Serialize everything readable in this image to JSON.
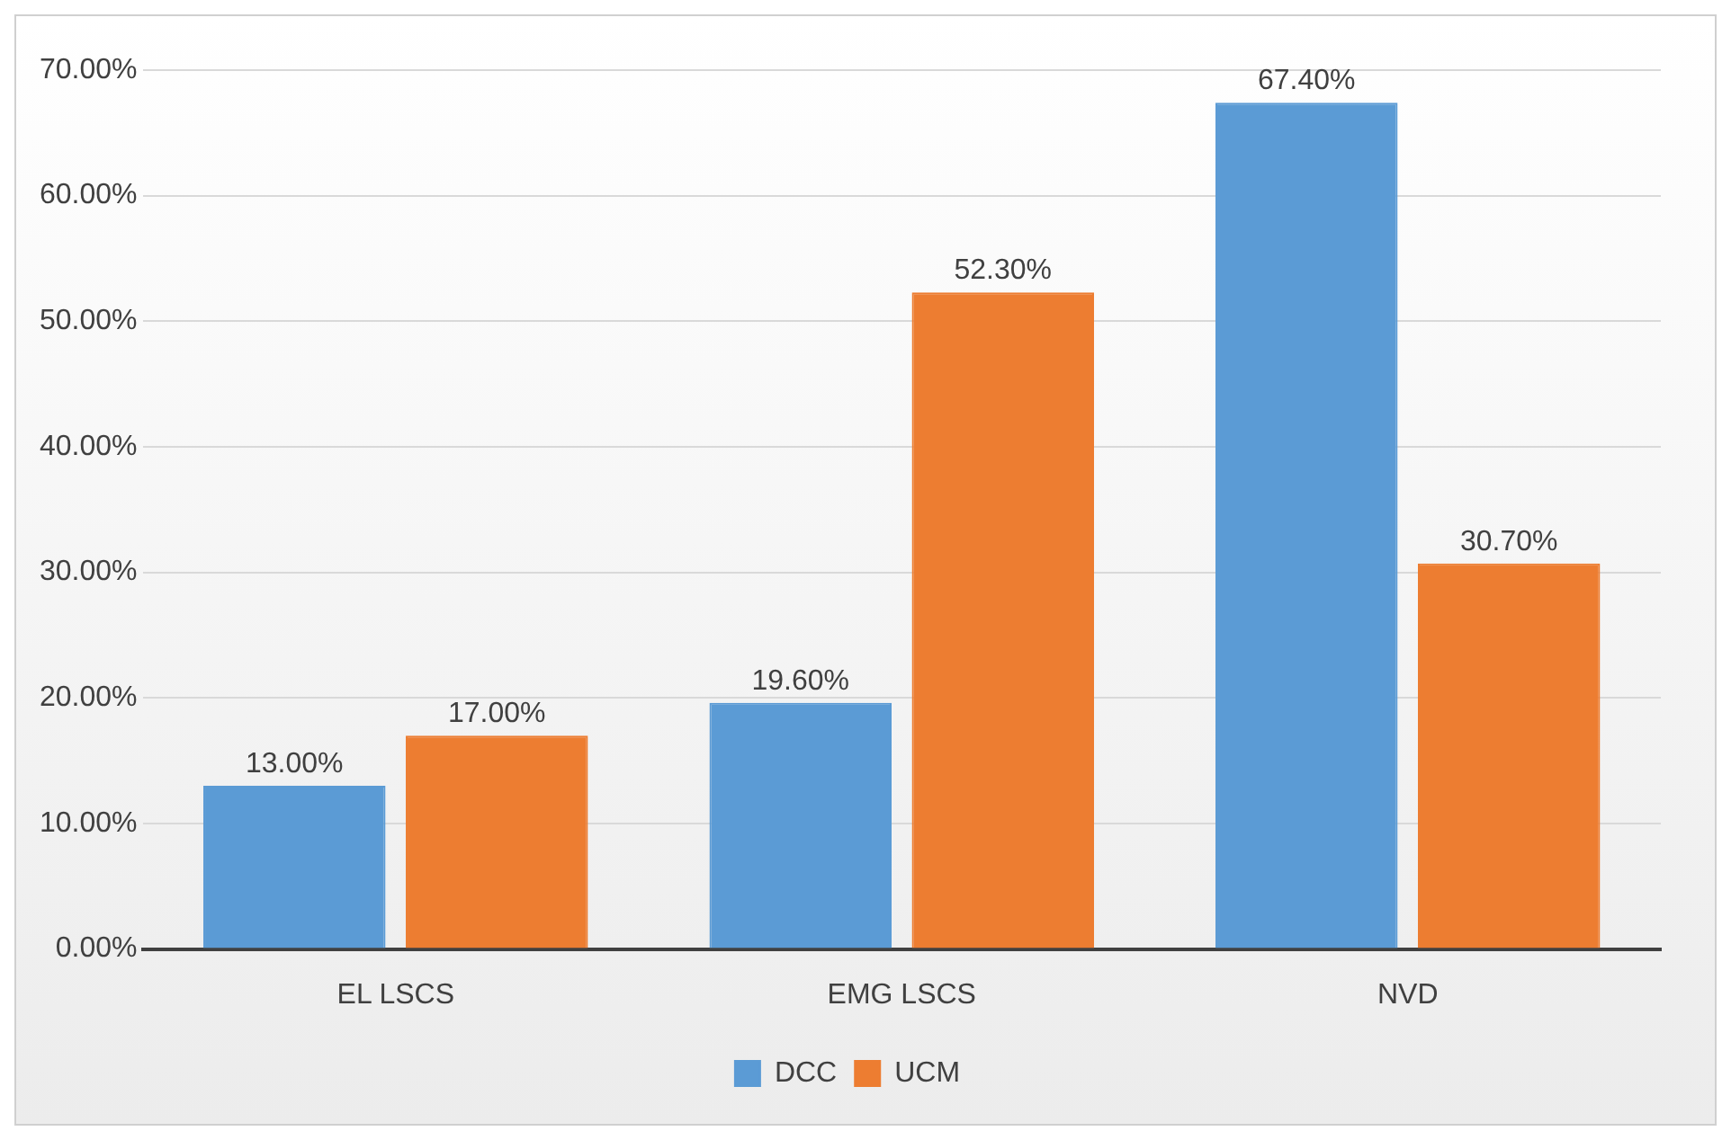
{
  "chart_data": {
    "type": "bar",
    "categories": [
      "EL LSCS",
      "EMG LSCS",
      "NVD"
    ],
    "series": [
      {
        "name": "DCC",
        "color": "#5b9bd5",
        "values": [
          13,
          19.6,
          67.4
        ],
        "value_labels": [
          "13.00%",
          "19.60%",
          "67.40%"
        ]
      },
      {
        "name": "UCM",
        "color": "#ed7d31",
        "values": [
          17,
          52.3,
          30.7
        ],
        "value_labels": [
          "17.00%",
          "52.30%",
          "30.70%"
        ]
      }
    ],
    "ylim": [
      0,
      70
    ],
    "yticks": [
      {
        "value": 0,
        "label": "0.00%"
      },
      {
        "value": 10,
        "label": "10.00%"
      },
      {
        "value": 20,
        "label": "20.00%"
      },
      {
        "value": 30,
        "label": "30.00%"
      },
      {
        "value": 40,
        "label": "40.00%"
      },
      {
        "value": 50,
        "label": "50.00%"
      },
      {
        "value": 60,
        "label": "60.00%"
      },
      {
        "value": 70,
        "label": "70.00%"
      }
    ],
    "grid": "y",
    "legend": "bottom"
  }
}
